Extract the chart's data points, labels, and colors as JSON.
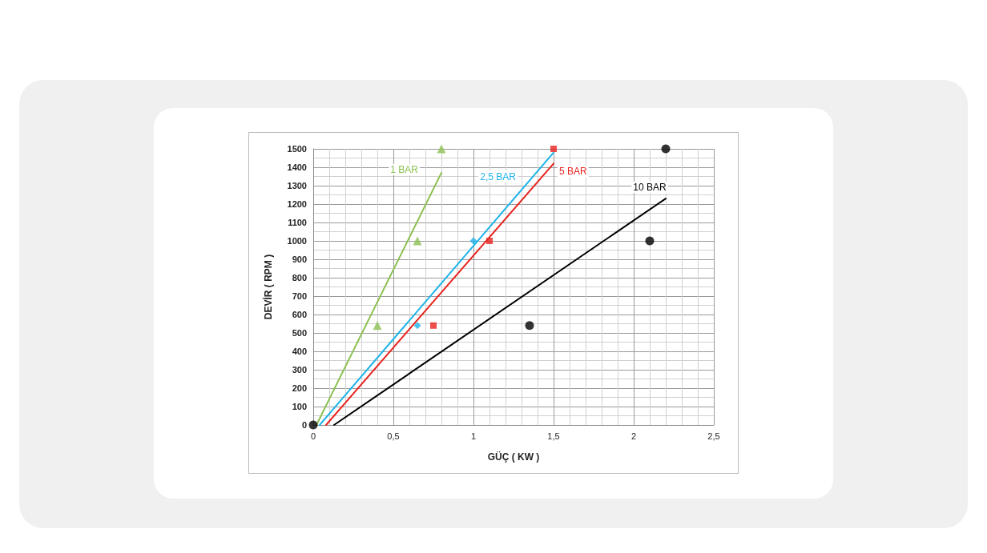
{
  "chart_data": {
    "type": "scatter",
    "xlabel": "GÜÇ ( KW )",
    "ylabel": "DEVİR ( RPM )",
    "xlim": [
      0,
      2.5
    ],
    "ylim": [
      0,
      1500
    ],
    "xticks": [
      0,
      {
        "value": 0.5,
        "label": "0,5"
      },
      1,
      {
        "value": 1.5,
        "label": "1,5"
      },
      2,
      {
        "value": 2.5,
        "label": "2,5"
      }
    ],
    "yticks": [
      0,
      100,
      200,
      300,
      400,
      500,
      600,
      700,
      800,
      900,
      1000,
      1100,
      1200,
      1300,
      1400,
      1500
    ],
    "grid": true,
    "legend": false,
    "series": [
      {
        "marker": "triangle",
        "color": "#8cc152",
        "x": [
          0.4,
          0.65,
          0.8
        ],
        "values": [
          540,
          1000,
          1500
        ]
      },
      {
        "marker": "diamond",
        "color": "#1fb3e8",
        "x": [
          0.65,
          1
        ],
        "values": [
          540,
          1000
        ]
      },
      {
        "marker": "square",
        "color": "#e8231f",
        "x": [
          0.75,
          1.1,
          1.5
        ],
        "values": [
          540,
          1000,
          1500
        ]
      },
      {
        "marker": "circle",
        "color": "#000000",
        "x": [
          0,
          1.35,
          2.1,
          2.2
        ],
        "values": [
          0,
          540,
          1000,
          1500
        ]
      },
      {
        "type": "line",
        "name": "1 BAR",
        "marker": "none",
        "color": "#8cc152",
        "x": [
          0.02,
          0.8
        ],
        "values": [
          0,
          1370
        ]
      },
      {
        "type": "line",
        "name": "2,5 BAR",
        "marker": "none",
        "color": "#1fb3e8",
        "x": [
          0.04,
          1.5
        ],
        "values": [
          0,
          1480
        ]
      },
      {
        "type": "line",
        "name": "5 BAR",
        "marker": "none",
        "color": "#e8231f",
        "x": [
          0.08,
          1.5
        ],
        "values": [
          0,
          1420
        ]
      },
      {
        "type": "line",
        "name": "10 BAR",
        "marker": "none",
        "color": "#000000",
        "x": [
          0.13,
          2.2
        ],
        "values": [
          0,
          1230
        ]
      }
    ]
  }
}
